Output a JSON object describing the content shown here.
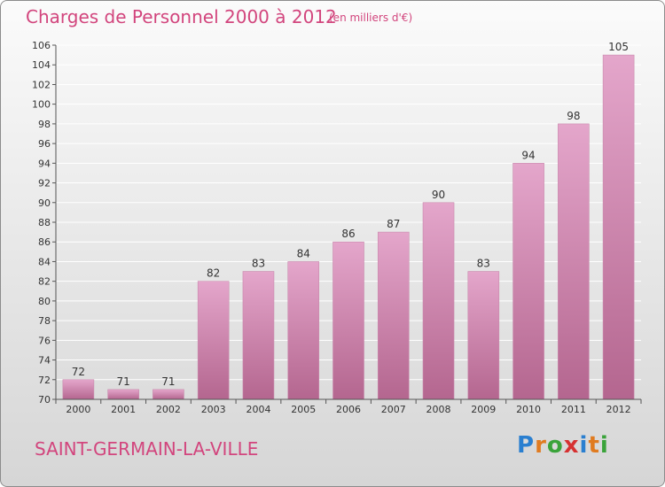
{
  "header": {
    "title": "Charges de Personnel 2000 à 2012",
    "subtitle": "(en milliers d'€)"
  },
  "footer": {
    "commune": "SAINT-GERMAIN-LA-VILLE",
    "logo": [
      "P",
      "r",
      "o",
      "x",
      "i",
      "t",
      "i"
    ]
  },
  "colors": {
    "bar_light": "#e4a6cb",
    "bar_dark": "#b4668f",
    "title": "#d2457d",
    "logo_letters": [
      "#2a7fd0",
      "#e07b20",
      "#3aa33a",
      "#d63131",
      "#2a7fd0",
      "#e07b20",
      "#3aa33a"
    ]
  },
  "chart_data": {
    "type": "bar",
    "categories": [
      "2000",
      "2001",
      "2002",
      "2003",
      "2004",
      "2005",
      "2006",
      "2007",
      "2008",
      "2009",
      "2010",
      "2011",
      "2012"
    ],
    "values": [
      72,
      71,
      71,
      82,
      83,
      84,
      86,
      87,
      90,
      83,
      94,
      98,
      105
    ],
    "ylim": [
      70,
      106
    ],
    "yticks": [
      70,
      72,
      74,
      76,
      78,
      80,
      82,
      84,
      86,
      88,
      90,
      92,
      94,
      96,
      98,
      100,
      102,
      104,
      106
    ],
    "grid": true
  }
}
